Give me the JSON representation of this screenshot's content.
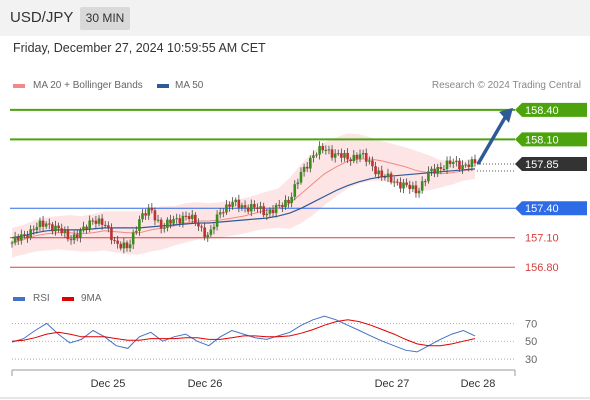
{
  "header": {
    "symbol": "USD/JPY",
    "timeframe": "30 MIN"
  },
  "datetime": "Friday, December 27, 2024 10:59:55 AM CET",
  "legend": {
    "items": [
      {
        "label": "MA 20 + Bollinger Bands",
        "color": "#f08a86"
      },
      {
        "label": "MA 50",
        "color": "#2e5a96"
      }
    ],
    "credit": "Research © 2024 Trading Central"
  },
  "rsi_legend": {
    "items": [
      {
        "label": "RSI",
        "color": "#4472c4"
      },
      {
        "label": "9MA",
        "color": "#e00000"
      }
    ]
  },
  "chart_data": [
    {
      "type": "candlestick",
      "title": "USD/JPY",
      "timeframe": "30 MIN",
      "x_ticks": [
        "Dec 25",
        "Dec 26",
        "Dec 27",
        "Dec 28"
      ],
      "y_range": [
        156.65,
        158.5
      ],
      "levels": [
        {
          "value": 158.4,
          "label": "158.40",
          "color": "#4ca30d",
          "style": "solid",
          "tag": "filled"
        },
        {
          "value": 158.1,
          "label": "158.10",
          "color": "#4ca30d",
          "style": "solid",
          "tag": "filled"
        },
        {
          "value": 157.85,
          "label": "157.85",
          "color": "#333333",
          "style": "dotted",
          "tag": "filled"
        },
        {
          "value": 157.4,
          "label": "157.40",
          "color": "#2e6be6",
          "style": "solid",
          "tag": "filled"
        },
        {
          "value": 157.1,
          "label": "157.10",
          "color": "#d44040",
          "style": "solid",
          "tag": "text"
        },
        {
          "value": 156.8,
          "label": "156.80",
          "color": "#d44040",
          "style": "solid",
          "tag": "text"
        }
      ],
      "close_path": [
        157.05,
        157.12,
        157.2,
        157.25,
        157.18,
        157.1,
        157.15,
        157.3,
        157.22,
        157.05,
        156.98,
        157.3,
        157.38,
        157.2,
        157.28,
        157.32,
        157.25,
        157.1,
        157.38,
        157.45,
        157.42,
        157.4,
        157.36,
        157.4,
        157.5,
        157.75,
        157.95,
        158.0,
        157.95,
        157.9,
        157.95,
        157.85,
        157.72,
        157.68,
        157.62,
        157.58,
        157.75,
        157.82,
        157.86,
        157.84,
        157.85
      ],
      "ma20": [
        157.05,
        157.08,
        157.12,
        157.14,
        157.15,
        157.15,
        157.14,
        157.15,
        157.17,
        157.16,
        157.15,
        157.15,
        157.18,
        157.2,
        157.22,
        157.25,
        157.27,
        157.27,
        157.28,
        157.3,
        157.32,
        157.35,
        157.38,
        157.4,
        157.45,
        157.55,
        157.65,
        157.75,
        157.82,
        157.88,
        157.9,
        157.9,
        157.88,
        157.85,
        157.82,
        157.78,
        157.76,
        157.75,
        157.76,
        157.78,
        157.8
      ],
      "ma50": [
        157.1,
        157.12,
        157.15,
        157.17,
        157.18,
        157.18,
        157.18,
        157.19,
        157.2,
        157.2,
        157.2,
        157.2,
        157.21,
        157.22,
        157.23,
        157.24,
        157.25,
        157.25,
        157.26,
        157.27,
        157.28,
        157.29,
        157.3,
        157.32,
        157.35,
        157.4,
        157.46,
        157.52,
        157.58,
        157.63,
        157.67,
        157.7,
        157.72,
        157.73,
        157.74,
        157.75,
        157.76,
        157.77,
        157.78,
        157.79,
        157.8
      ],
      "bollinger_width": [
        0.15,
        0.15,
        0.16,
        0.17,
        0.17,
        0.18,
        0.18,
        0.19,
        0.2,
        0.21,
        0.22,
        0.22,
        0.22,
        0.22,
        0.2,
        0.2,
        0.19,
        0.18,
        0.18,
        0.18,
        0.18,
        0.18,
        0.19,
        0.2,
        0.26,
        0.3,
        0.32,
        0.32,
        0.3,
        0.28,
        0.25,
        0.22,
        0.2,
        0.2,
        0.2,
        0.2,
        0.18,
        0.14,
        0.12,
        0.1,
        0.1
      ],
      "forecast_arrow": {
        "from": 157.85,
        "to": 158.4
      }
    },
    {
      "type": "line",
      "title": "RSI",
      "y_range": [
        20,
        85
      ],
      "y_ticks": [
        "70",
        "50",
        "30"
      ],
      "y_tick_values": [
        70,
        50,
        30
      ],
      "series": [
        {
          "name": "RSI",
          "color": "#4472c4",
          "values": [
            49,
            53,
            62,
            70,
            58,
            48,
            52,
            62,
            55,
            45,
            42,
            55,
            60,
            50,
            55,
            58,
            50,
            45,
            55,
            62,
            58,
            54,
            52,
            56,
            60,
            68,
            74,
            78,
            74,
            68,
            62,
            56,
            50,
            45,
            40,
            38,
            45,
            52,
            58,
            62,
            56
          ]
        },
        {
          "name": "9MA",
          "color": "#e00000",
          "values": [
            50,
            51,
            54,
            58,
            60,
            58,
            55,
            55,
            55,
            53,
            51,
            51,
            53,
            53,
            53,
            54,
            54,
            52,
            52,
            54,
            56,
            56,
            55,
            55,
            56,
            59,
            63,
            68,
            72,
            74,
            72,
            68,
            63,
            58,
            52,
            47,
            45,
            45,
            47,
            50,
            53
          ]
        }
      ]
    }
  ]
}
